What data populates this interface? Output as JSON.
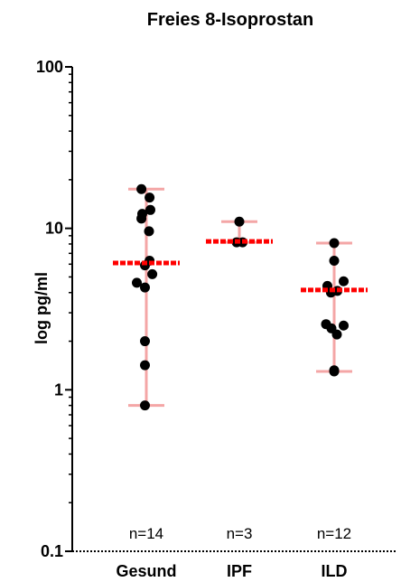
{
  "chart_data": {
    "type": "scatter",
    "title": "Freies 8-Isoprostan",
    "ylabel": "log pg/ml",
    "yscale": "log",
    "ylim": [
      0.1,
      100
    ],
    "yticks": [
      {
        "value": 0.1,
        "label": "0.1"
      },
      {
        "value": 1,
        "label": "1"
      },
      {
        "value": 10,
        "label": "10"
      },
      {
        "value": 100,
        "label": "100"
      }
    ],
    "categories": [
      "Gesund",
      "IPF",
      "ILD"
    ],
    "groups": [
      {
        "category": "Gesund",
        "n_label": "n=14",
        "mean": 6.1,
        "whisker_low": 0.8,
        "whisker_high": 17.5,
        "points": [
          {
            "dx": -0.18,
            "y": 17.5
          },
          {
            "dx": 0.12,
            "y": 15.5
          },
          {
            "dx": -0.15,
            "y": 12.3
          },
          {
            "dx": -0.18,
            "y": 11.5
          },
          {
            "dx": 0.15,
            "y": 13.0
          },
          {
            "dx": 0.1,
            "y": 9.6
          },
          {
            "dx": 0.12,
            "y": 6.3
          },
          {
            "dx": -0.05,
            "y": 5.9
          },
          {
            "dx": 0.22,
            "y": 5.2
          },
          {
            "dx": -0.35,
            "y": 4.6
          },
          {
            "dx": -0.05,
            "y": 4.3
          },
          {
            "dx": -0.05,
            "y": 2.0
          },
          {
            "dx": -0.05,
            "y": 1.42
          },
          {
            "dx": -0.05,
            "y": 0.8
          }
        ]
      },
      {
        "category": "IPF",
        "n_label": "n=3",
        "mean": 8.3,
        "whisker_low": 8.2,
        "whisker_high": 11.0,
        "points": [
          {
            "dx": 0.0,
            "y": 11.0
          },
          {
            "dx": -0.1,
            "y": 8.2
          },
          {
            "dx": 0.12,
            "y": 8.2
          }
        ]
      },
      {
        "category": "ILD",
        "n_label": "n=12",
        "mean": 4.15,
        "whisker_low": 1.3,
        "whisker_high": 8.1,
        "points": [
          {
            "dx": 0.0,
            "y": 8.1
          },
          {
            "dx": 0.0,
            "y": 6.3
          },
          {
            "dx": 0.35,
            "y": 4.7
          },
          {
            "dx": -0.25,
            "y": 4.4
          },
          {
            "dx": -0.12,
            "y": 4.0
          },
          {
            "dx": 0.12,
            "y": 4.1
          },
          {
            "dx": -0.3,
            "y": 2.55
          },
          {
            "dx": -0.1,
            "y": 2.4
          },
          {
            "dx": 0.35,
            "y": 2.5
          },
          {
            "dx": 0.1,
            "y": 2.2
          },
          {
            "dx": 0.0,
            "y": 1.3
          },
          {
            "dx": 0.0,
            "y": 1.32
          }
        ]
      }
    ],
    "colors": {
      "point": "#000000",
      "mean": "#ff0000",
      "whisker": "#f4a6a6",
      "axis": "#000000"
    }
  }
}
